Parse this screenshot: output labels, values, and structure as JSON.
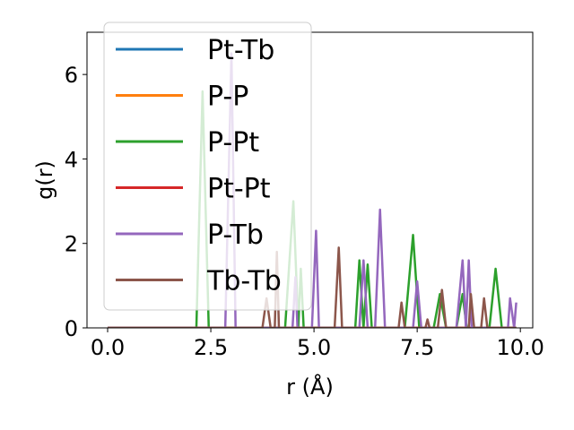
{
  "chart_data": {
    "type": "line",
    "xlabel": "r (Å)",
    "ylabel": "g(r)",
    "xlim": [
      -0.5,
      10.3
    ],
    "ylim": [
      0,
      7.0
    ],
    "xticks": [
      "0.0",
      "2.5",
      "5.0",
      "7.5",
      "10.0"
    ],
    "xtick_values": [
      0,
      2.5,
      5,
      7.5,
      10
    ],
    "yticks": [
      "0",
      "2",
      "4",
      "6"
    ],
    "ytick_values": [
      0,
      2,
      4,
      6
    ],
    "legend_position": "upper-left",
    "series": [
      {
        "name": "Pt-Tb",
        "color": "#1f77b4",
        "x": [
          0,
          9.9
        ],
        "y": [
          0,
          0
        ]
      },
      {
        "name": "P-P",
        "color": "#ff7f0e",
        "x": [
          0,
          9.9
        ],
        "y": [
          0,
          0
        ]
      },
      {
        "name": "P-Pt",
        "color": "#2ca02c",
        "x": [
          0,
          2.15,
          2.3,
          2.45,
          4.3,
          4.5,
          4.62,
          4.68,
          4.75,
          6.0,
          6.1,
          6.2,
          6.3,
          6.4,
          7.2,
          7.4,
          7.55,
          7.9,
          8.05,
          8.2,
          8.45,
          8.6,
          8.7,
          9.25,
          9.4,
          9.55,
          9.9
        ],
        "y": [
          0,
          0,
          5.6,
          0,
          0,
          3.0,
          0,
          1.4,
          0,
          0,
          1.6,
          0,
          1.5,
          0,
          0,
          2.2,
          0,
          0,
          0.8,
          0,
          0,
          0.8,
          0,
          0,
          1.4,
          0,
          0
        ]
      },
      {
        "name": "Pt-Pt",
        "color": "#d62728",
        "x": [
          0,
          9.9
        ],
        "y": [
          0,
          0
        ]
      },
      {
        "name": "P-Tb",
        "color": "#9467bd",
        "x": [
          0,
          2.85,
          3.0,
          3.1,
          4.48,
          4.55,
          4.6,
          4.95,
          5.05,
          5.12,
          6.1,
          6.2,
          6.3,
          6.48,
          6.6,
          6.72,
          7.4,
          7.5,
          7.6,
          8.45,
          8.6,
          8.68,
          8.75,
          8.82,
          8.95,
          9.7,
          9.75,
          9.85,
          9.9
        ],
        "y": [
          0,
          0,
          6.5,
          0,
          0,
          1.2,
          0,
          0,
          2.3,
          0,
          0,
          1.6,
          0,
          0,
          2.8,
          0,
          0,
          1.1,
          0,
          0,
          1.6,
          0,
          1.6,
          0,
          0,
          0,
          0.7,
          0,
          0.6
        ]
      },
      {
        "name": "Tb-Tb",
        "color": "#8c564b",
        "x": [
          0,
          3.75,
          3.85,
          3.95,
          4.05,
          4.1,
          4.15,
          5.5,
          5.6,
          5.68,
          7.05,
          7.12,
          7.2,
          7.7,
          7.75,
          7.8,
          8.0,
          8.1,
          8.2,
          8.75,
          8.8,
          8.88,
          9.05,
          9.12,
          9.2,
          9.9
        ],
        "y": [
          0,
          0,
          0.7,
          0,
          0,
          1.8,
          0,
          0,
          1.9,
          0,
          0,
          0.6,
          0,
          0,
          0.2,
          0,
          0,
          0.9,
          0,
          0,
          0.8,
          0,
          0,
          0.7,
          0,
          0
        ]
      }
    ]
  }
}
